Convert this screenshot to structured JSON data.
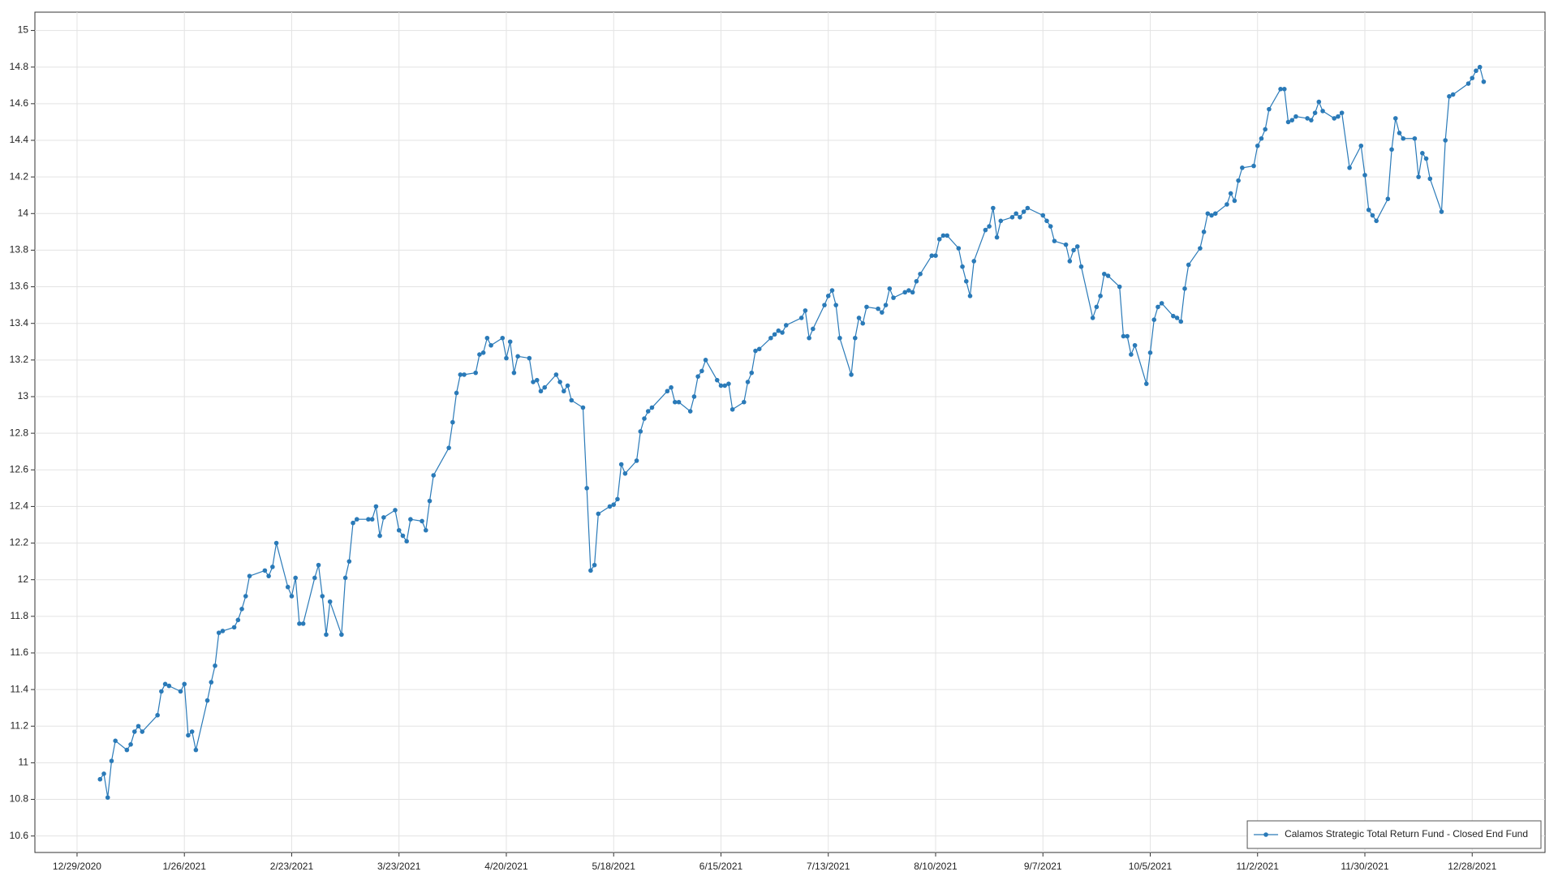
{
  "chart_data": {
    "type": "line",
    "x": [
      "1/4/2021",
      "1/5/2021",
      "1/6/2021",
      "1/7/2021",
      "1/8/2021",
      "1/11/2021",
      "1/12/2021",
      "1/13/2021",
      "1/14/2021",
      "1/15/2021",
      "1/19/2021",
      "1/20/2021",
      "1/21/2021",
      "1/22/2021",
      "1/25/2021",
      "1/26/2021",
      "1/27/2021",
      "1/28/2021",
      "1/29/2021",
      "2/1/2021",
      "2/2/2021",
      "2/3/2021",
      "2/4/2021",
      "2/5/2021",
      "2/8/2021",
      "2/9/2021",
      "2/10/2021",
      "2/11/2021",
      "2/12/2021",
      "2/16/2021",
      "2/17/2021",
      "2/18/2021",
      "2/19/2021",
      "2/22/2021",
      "2/23/2021",
      "2/24/2021",
      "2/25/2021",
      "2/26/2021",
      "3/1/2021",
      "3/2/2021",
      "3/3/2021",
      "3/4/2021",
      "3/5/2021",
      "3/8/2021",
      "3/9/2021",
      "3/10/2021",
      "3/11/2021",
      "3/12/2021",
      "3/15/2021",
      "3/16/2021",
      "3/17/2021",
      "3/18/2021",
      "3/19/2021",
      "3/22/2021",
      "3/23/2021",
      "3/24/2021",
      "3/25/2021",
      "3/26/2021",
      "3/29/2021",
      "3/30/2021",
      "3/31/2021",
      "4/1/2021",
      "4/5/2021",
      "4/6/2021",
      "4/7/2021",
      "4/8/2021",
      "4/9/2021",
      "4/12/2021",
      "4/13/2021",
      "4/14/2021",
      "4/15/2021",
      "4/16/2021",
      "4/19/2021",
      "4/20/2021",
      "4/21/2021",
      "4/22/2021",
      "4/23/2021",
      "4/26/2021",
      "4/27/2021",
      "4/28/2021",
      "4/29/2021",
      "4/30/2021",
      "5/3/2021",
      "5/4/2021",
      "5/5/2021",
      "5/6/2021",
      "5/7/2021",
      "5/10/2021",
      "5/11/2021",
      "5/12/2021",
      "5/13/2021",
      "5/14/2021",
      "5/17/2021",
      "5/18/2021",
      "5/19/2021",
      "5/20/2021",
      "5/21/2021",
      "5/24/2021",
      "5/25/2021",
      "5/26/2021",
      "5/27/2021",
      "5/28/2021",
      "6/1/2021",
      "6/2/2021",
      "6/3/2021",
      "6/4/2021",
      "6/7/2021",
      "6/8/2021",
      "6/9/2021",
      "6/10/2021",
      "6/11/2021",
      "6/14/2021",
      "6/15/2021",
      "6/16/2021",
      "6/17/2021",
      "6/18/2021",
      "6/21/2021",
      "6/22/2021",
      "6/23/2021",
      "6/24/2021",
      "6/25/2021",
      "6/28/2021",
      "6/29/2021",
      "6/30/2021",
      "7/1/2021",
      "7/2/2021",
      "7/6/2021",
      "7/7/2021",
      "7/8/2021",
      "7/9/2021",
      "7/12/2021",
      "7/13/2021",
      "7/14/2021",
      "7/15/2021",
      "7/16/2021",
      "7/19/2021",
      "7/20/2021",
      "7/21/2021",
      "7/22/2021",
      "7/23/2021",
      "7/26/2021",
      "7/27/2021",
      "7/28/2021",
      "7/29/2021",
      "7/30/2021",
      "8/2/2021",
      "8/3/2021",
      "8/4/2021",
      "8/5/2021",
      "8/6/2021",
      "8/9/2021",
      "8/10/2021",
      "8/11/2021",
      "8/12/2021",
      "8/13/2021",
      "8/16/2021",
      "8/17/2021",
      "8/18/2021",
      "8/19/2021",
      "8/20/2021",
      "8/23/2021",
      "8/24/2021",
      "8/25/2021",
      "8/26/2021",
      "8/27/2021",
      "8/30/2021",
      "8/31/2021",
      "9/1/2021",
      "9/2/2021",
      "9/3/2021",
      "9/7/2021",
      "9/8/2021",
      "9/9/2021",
      "9/10/2021",
      "9/13/2021",
      "9/14/2021",
      "9/15/2021",
      "9/16/2021",
      "9/17/2021",
      "9/20/2021",
      "9/21/2021",
      "9/22/2021",
      "9/23/2021",
      "9/24/2021",
      "9/27/2021",
      "9/28/2021",
      "9/29/2021",
      "9/30/2021",
      "10/1/2021",
      "10/4/2021",
      "10/5/2021",
      "10/6/2021",
      "10/7/2021",
      "10/8/2021",
      "10/11/2021",
      "10/12/2021",
      "10/13/2021",
      "10/14/2021",
      "10/15/2021",
      "10/18/2021",
      "10/19/2021",
      "10/20/2021",
      "10/21/2021",
      "10/22/2021",
      "10/25/2021",
      "10/26/2021",
      "10/27/2021",
      "10/28/2021",
      "10/29/2021",
      "11/1/2021",
      "11/2/2021",
      "11/3/2021",
      "11/4/2021",
      "11/5/2021",
      "11/8/2021",
      "11/9/2021",
      "11/10/2021",
      "11/11/2021",
      "11/12/2021",
      "11/15/2021",
      "11/16/2021",
      "11/17/2021",
      "11/18/2021",
      "11/19/2021",
      "11/22/2021",
      "11/23/2021",
      "11/24/2021",
      "11/26/2021",
      "11/29/2021",
      "11/30/2021",
      "12/1/2021",
      "12/2/2021",
      "12/3/2021",
      "12/6/2021",
      "12/7/2021",
      "12/8/2021",
      "12/9/2021",
      "12/10/2021",
      "12/13/2021",
      "12/14/2021",
      "12/15/2021",
      "12/16/2021",
      "12/17/2021",
      "12/20/2021",
      "12/21/2021",
      "12/22/2021",
      "12/23/2021",
      "12/27/2021",
      "12/28/2021",
      "12/29/2021",
      "12/30/2021",
      "12/31/2021"
    ],
    "series": [
      {
        "name": "Calamos Strategic Total Return Fund - Closed End Fund",
        "color": "#2a7ab8",
        "values": [
          10.91,
          10.94,
          10.81,
          11.01,
          11.12,
          11.07,
          11.1,
          11.17,
          11.2,
          11.17,
          11.26,
          11.39,
          11.43,
          11.42,
          11.39,
          11.43,
          11.15,
          11.17,
          11.07,
          11.34,
          11.44,
          11.53,
          11.71,
          11.72,
          11.74,
          11.78,
          11.84,
          11.91,
          12.02,
          12.05,
          12.02,
          12.07,
          12.2,
          11.96,
          11.91,
          12.01,
          11.76,
          11.76,
          12.01,
          12.08,
          11.91,
          11.7,
          11.88,
          11.7,
          12.01,
          12.1,
          12.31,
          12.33,
          12.33,
          12.33,
          12.4,
          12.24,
          12.34,
          12.38,
          12.27,
          12.24,
          12.21,
          12.33,
          12.32,
          12.27,
          12.43,
          12.57,
          12.72,
          12.86,
          13.02,
          13.12,
          13.12,
          13.13,
          13.23,
          13.24,
          13.32,
          13.28,
          13.32,
          13.21,
          13.3,
          13.13,
          13.22,
          13.21,
          13.08,
          13.09,
          13.03,
          13.05,
          13.12,
          13.08,
          13.03,
          13.06,
          12.98,
          12.94,
          12.5,
          12.05,
          12.08,
          12.36,
          12.4,
          12.41,
          12.44,
          12.63,
          12.58,
          12.65,
          12.81,
          12.88,
          12.92,
          12.94,
          13.03,
          13.05,
          12.97,
          12.97,
          12.92,
          13.0,
          13.11,
          13.14,
          13.2,
          13.09,
          13.06,
          13.06,
          13.07,
          12.93,
          12.97,
          13.08,
          13.13,
          13.25,
          13.26,
          13.32,
          13.34,
          13.36,
          13.35,
          13.39,
          13.43,
          13.47,
          13.32,
          13.37,
          13.5,
          13.55,
          13.58,
          13.5,
          13.32,
          13.12,
          13.32,
          13.43,
          13.4,
          13.49,
          13.48,
          13.46,
          13.5,
          13.59,
          13.54,
          13.57,
          13.58,
          13.57,
          13.63,
          13.67,
          13.77,
          13.77,
          13.86,
          13.88,
          13.88,
          13.81,
          13.71,
          13.63,
          13.55,
          13.74,
          13.91,
          13.93,
          14.03,
          13.87,
          13.96,
          13.98,
          14.0,
          13.98,
          14.01,
          14.03,
          13.99,
          13.96,
          13.93,
          13.85,
          13.83,
          13.74,
          13.8,
          13.82,
          13.71,
          13.43,
          13.49,
          13.55,
          13.67,
          13.66,
          13.6,
          13.33,
          13.33,
          13.23,
          13.28,
          13.07,
          13.24,
          13.42,
          13.49,
          13.51,
          13.44,
          13.43,
          13.41,
          13.59,
          13.72,
          13.81,
          13.9,
          14.0,
          13.99,
          14.0,
          14.05,
          14.11,
          14.07,
          14.18,
          14.25,
          14.26,
          14.37,
          14.41,
          14.46,
          14.57,
          14.68,
          14.68,
          14.5,
          14.51,
          14.53,
          14.52,
          14.51,
          14.55,
          14.61,
          14.56,
          14.52,
          14.53,
          14.55,
          14.25,
          14.37,
          14.21,
          14.02,
          13.99,
          13.96,
          14.08,
          14.35,
          14.52,
          14.44,
          14.41,
          14.41,
          14.2,
          14.33,
          14.3,
          14.19,
          14.01,
          14.4,
          14.64,
          14.65,
          14.71,
          14.74,
          14.78,
          14.8,
          14.72
        ]
      }
    ],
    "xlim": [
      "12/18/2020",
      "1/16/2022"
    ],
    "xticks": [
      "12/29/2020",
      "1/26/2021",
      "2/23/2021",
      "3/23/2021",
      "4/20/2021",
      "5/18/2021",
      "6/15/2021",
      "7/13/2021",
      "8/10/2021",
      "9/7/2021",
      "10/5/2021",
      "11/2/2021",
      "11/30/2021",
      "12/28/2021"
    ],
    "ylim": [
      10.51,
      15.1
    ],
    "yticks": [
      10.6,
      10.8,
      11,
      11.2,
      11.4,
      11.6,
      11.8,
      12,
      12.2,
      12.4,
      12.6,
      12.8,
      13,
      13.2,
      13.4,
      13.6,
      13.8,
      14,
      14.2,
      14.4,
      14.6,
      14.8,
      15
    ],
    "grid": true,
    "legend": "lower right"
  }
}
